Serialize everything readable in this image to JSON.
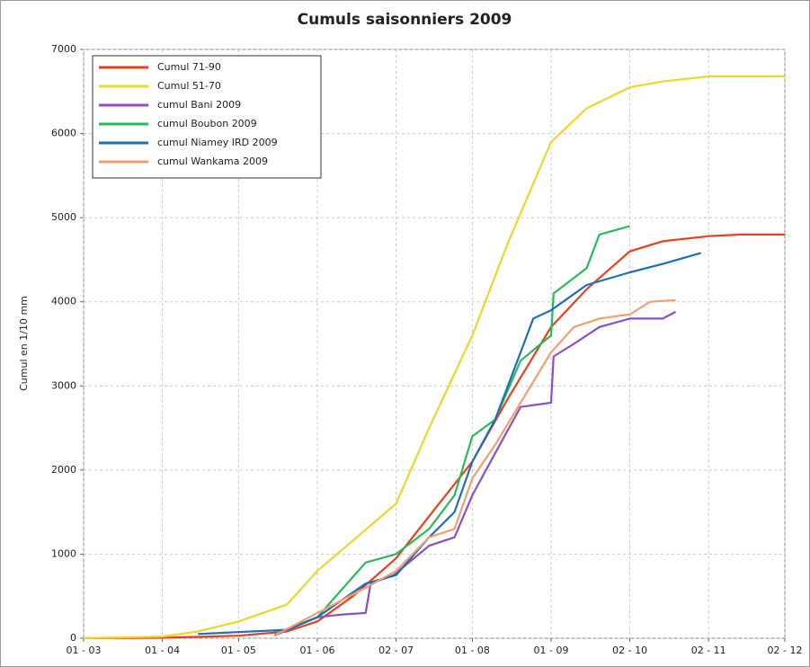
{
  "chart_data": {
    "type": "line",
    "title": "Cumuls saisonniers 2009",
    "y_label": "Cumul en 1/10 mm",
    "xlim": [
      "03-01",
      "12-02"
    ],
    "xticks": [
      {
        "value": "03-01",
        "label": "01 - 03"
      },
      {
        "value": "04-01",
        "label": "01 - 04"
      },
      {
        "value": "05-01",
        "label": "01 - 05"
      },
      {
        "value": "06-01",
        "label": "01 - 06"
      },
      {
        "value": "07-02",
        "label": "02 - 07"
      },
      {
        "value": "08-01",
        "label": "01 - 08"
      },
      {
        "value": "09-01",
        "label": "01 - 09"
      },
      {
        "value": "10-02",
        "label": "02 - 10"
      },
      {
        "value": "11-02",
        "label": "02 - 11"
      },
      {
        "value": "12-02",
        "label": "02 - 12"
      }
    ],
    "ylim": [
      0,
      7000
    ],
    "yticks": [
      0,
      1000,
      2000,
      3000,
      4000,
      5000,
      6000,
      7000
    ],
    "grid": true,
    "legend": "top-left",
    "series": [
      {
        "name": "Cumul 71-90",
        "color": "#e8401c",
        "x": [
          "03-01",
          "04-01",
          "05-01",
          "05-20",
          "06-01",
          "06-15",
          "07-02",
          "07-15",
          "08-01",
          "08-15",
          "09-01",
          "09-15",
          "10-02",
          "10-15",
          "11-02",
          "11-15",
          "12-02"
        ],
        "values": [
          0,
          5,
          30,
          80,
          200,
          500,
          950,
          1450,
          2100,
          2850,
          3700,
          4150,
          4600,
          4720,
          4780,
          4800,
          4800
        ]
      },
      {
        "name": "Cumul 51-70",
        "color": "#e8d82a",
        "x": [
          "03-01",
          "04-01",
          "04-15",
          "05-01",
          "05-20",
          "06-01",
          "07-02",
          "07-15",
          "08-01",
          "08-15",
          "09-01",
          "09-15",
          "10-02",
          "10-15",
          "11-02",
          "12-02"
        ],
        "values": [
          0,
          20,
          80,
          200,
          400,
          800,
          1600,
          2500,
          3600,
          4700,
          5900,
          6300,
          6550,
          6620,
          6680,
          6680
        ]
      },
      {
        "name": "cumul Bani 2009",
        "color": "#8a4fc4",
        "x": [
          "05-15",
          "06-01",
          "06-10",
          "06-20",
          "06-22",
          "07-01",
          "07-15",
          "07-25",
          "08-01",
          "08-10",
          "08-20",
          "09-01",
          "09-02",
          "09-10",
          "09-20",
          "10-02",
          "10-15",
          "10-20"
        ],
        "values": [
          30,
          250,
          280,
          300,
          650,
          750,
          1100,
          1200,
          1700,
          2200,
          2750,
          2800,
          3350,
          3500,
          3700,
          3800,
          3800,
          3880
        ]
      },
      {
        "name": "cumul Boubon 2009",
        "color": "#2bb85a",
        "x": [
          "05-15",
          "06-01",
          "06-20",
          "07-02",
          "07-15",
          "07-25",
          "08-01",
          "08-10",
          "08-20",
          "09-01",
          "09-02",
          "09-15",
          "09-20",
          "10-02"
        ],
        "values": [
          50,
          250,
          900,
          1000,
          1300,
          1700,
          2400,
          2600,
          3300,
          3600,
          4100,
          4400,
          4800,
          4900
        ]
      },
      {
        "name": "cumul Niamey IRD 2009",
        "color": "#1c6fb8",
        "x": [
          "04-15",
          "05-20",
          "06-01",
          "06-20",
          "07-02",
          "07-15",
          "07-25",
          "08-01",
          "08-10",
          "08-20",
          "08-25",
          "09-01",
          "09-15",
          "10-02",
          "10-15",
          "10-30"
        ],
        "values": [
          50,
          100,
          250,
          650,
          750,
          1200,
          1500,
          2100,
          2600,
          3400,
          3800,
          3900,
          4200,
          4350,
          4450,
          4580
        ]
      },
      {
        "name": "cumul Wankama 2009",
        "color": "#f0a070",
        "x": [
          "05-15",
          "06-01",
          "06-20",
          "07-02",
          "07-15",
          "07-25",
          "08-01",
          "08-10",
          "08-20",
          "09-01",
          "09-10",
          "09-20",
          "10-02",
          "10-10",
          "10-20"
        ],
        "values": [
          30,
          300,
          600,
          800,
          1200,
          1300,
          1900,
          2300,
          2800,
          3400,
          3700,
          3800,
          3850,
          4000,
          4020
        ]
      }
    ]
  }
}
